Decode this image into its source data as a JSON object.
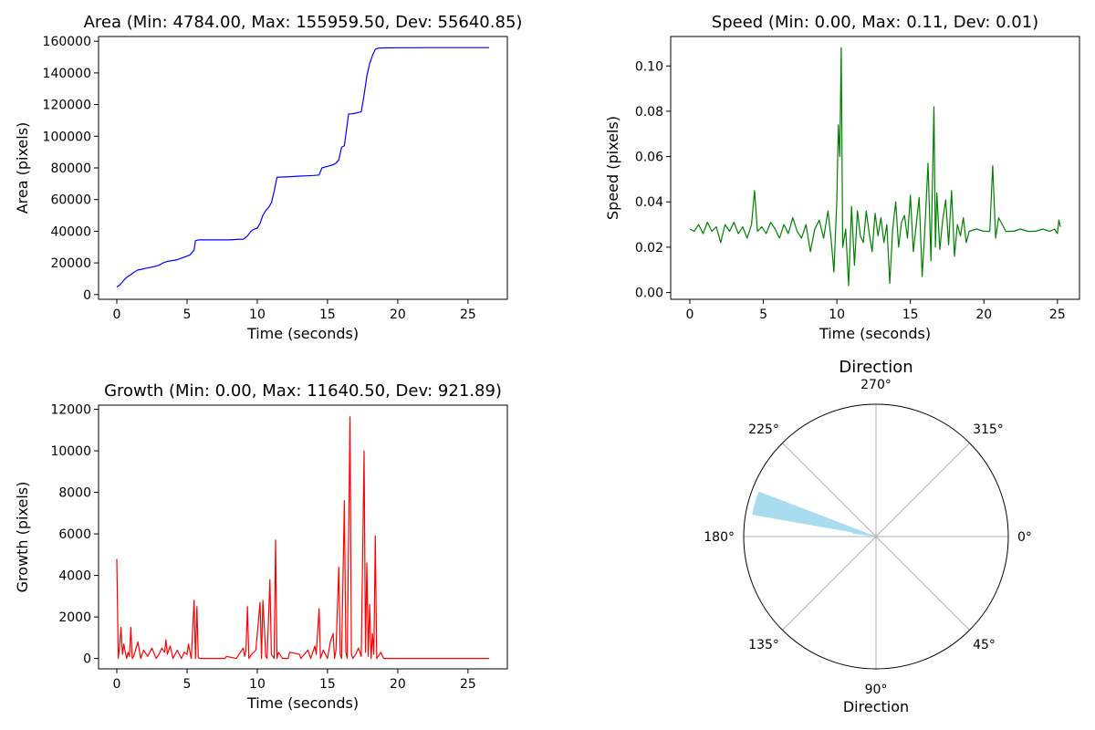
{
  "chart_data": [
    {
      "type": "line",
      "title": "Area (Min: 4784.00, Max: 155959.50, Dev: 55640.85)",
      "xlabel": "Time (seconds)",
      "ylabel": "Area (pixels)",
      "xlim": [
        -1.3,
        27.8
      ],
      "ylim": [
        -3000,
        163000
      ],
      "xticks": [
        0,
        5,
        10,
        15,
        20,
        25
      ],
      "yticks": [
        0,
        20000,
        40000,
        60000,
        80000,
        100000,
        120000,
        140000,
        160000
      ],
      "grid": false,
      "color": "#0000ff",
      "series": [
        {
          "x": [
            0.0,
            0.2,
            0.4,
            0.6,
            0.8,
            1.0,
            1.2,
            1.5,
            1.8,
            2.0,
            2.3,
            2.6,
            3.0,
            3.3,
            3.6,
            4.0,
            4.3,
            4.6,
            4.9,
            5.2,
            5.5,
            5.6,
            5.8,
            6.0,
            6.5,
            7.0,
            7.5,
            8.0,
            8.5,
            9.0,
            9.3,
            9.5,
            9.7,
            10.0,
            10.2,
            10.4,
            10.6,
            10.8,
            11.0,
            11.2,
            11.4,
            11.6,
            12.0,
            12.5,
            13.0,
            13.5,
            14.0,
            14.4,
            14.6,
            15.0,
            15.4,
            15.6,
            15.8,
            16.0,
            16.2,
            16.5,
            16.7,
            17.0,
            17.4,
            17.6,
            17.8,
            18.0,
            18.2,
            18.4,
            18.6,
            19.0,
            20.0,
            21.0,
            22.0,
            23.0,
            24.0,
            25.0,
            26.5
          ],
          "y": [
            4784,
            6000,
            8000,
            10000,
            11500,
            12500,
            14000,
            15500,
            16000,
            16500,
            17000,
            17500,
            18500,
            20000,
            21000,
            21500,
            22000,
            23000,
            24000,
            25000,
            28000,
            34000,
            34500,
            34500,
            34500,
            34500,
            34500,
            34500,
            34800,
            35000,
            37000,
            39500,
            41000,
            42000,
            45000,
            50000,
            53000,
            55000,
            58000,
            65000,
            74000,
            74200,
            74300,
            74500,
            74800,
            75000,
            75200,
            75500,
            80000,
            81000,
            82000,
            83000,
            85000,
            93000,
            94000,
            114000,
            114200,
            114500,
            115500,
            126000,
            138000,
            146000,
            151000,
            155000,
            155600,
            155800,
            155900,
            155900,
            155959.5,
            155959.5,
            155959.5,
            155959.5,
            155959.5
          ]
        }
      ]
    },
    {
      "type": "line",
      "title": "Speed (Min: 0.00, Max: 0.11, Dev: 0.01)",
      "xlabel": "Time (seconds)",
      "ylabel": "Speed (pixels)",
      "xlim": [
        -1.3,
        26.5
      ],
      "ylim": [
        -0.003,
        0.113
      ],
      "xticks": [
        0,
        5,
        10,
        15,
        20,
        25
      ],
      "yticks": [
        0.0,
        0.02,
        0.04,
        0.06,
        0.08,
        0.1
      ],
      "ytick_labels": [
        "0.00",
        "0.02",
        "0.04",
        "0.06",
        "0.08",
        "0.10"
      ],
      "grid": false,
      "color": "#008000",
      "series": [
        {
          "x": [
            0.0,
            0.3,
            0.6,
            0.9,
            1.2,
            1.5,
            1.8,
            2.1,
            2.4,
            2.7,
            3.0,
            3.3,
            3.6,
            3.9,
            4.2,
            4.4,
            4.6,
            4.9,
            5.2,
            5.5,
            5.8,
            6.1,
            6.4,
            6.7,
            7.0,
            7.3,
            7.6,
            7.9,
            8.2,
            8.5,
            8.8,
            9.1,
            9.4,
            9.6,
            9.8,
            10.0,
            10.1,
            10.2,
            10.3,
            10.4,
            10.6,
            10.8,
            11.0,
            11.2,
            11.4,
            11.6,
            11.8,
            12.0,
            12.2,
            12.4,
            12.6,
            12.8,
            13.0,
            13.2,
            13.4,
            13.6,
            13.8,
            14.0,
            14.2,
            14.4,
            14.6,
            14.8,
            15.0,
            15.2,
            15.4,
            15.6,
            15.8,
            16.0,
            16.2,
            16.4,
            16.6,
            16.7,
            16.8,
            17.0,
            17.2,
            17.4,
            17.6,
            17.8,
            18.0,
            18.2,
            18.4,
            18.6,
            18.8,
            19.0,
            19.5,
            20.0,
            20.4,
            20.6,
            20.8,
            21.0,
            21.5,
            22.0,
            22.5,
            23.0,
            23.5,
            24.0,
            24.5,
            24.8,
            25.0,
            25.1,
            25.2
          ],
          "y": [
            0.028,
            0.027,
            0.03,
            0.026,
            0.031,
            0.027,
            0.029,
            0.022,
            0.03,
            0.027,
            0.031,
            0.026,
            0.029,
            0.024,
            0.03,
            0.045,
            0.027,
            0.029,
            0.026,
            0.031,
            0.028,
            0.024,
            0.03,
            0.026,
            0.033,
            0.027,
            0.024,
            0.03,
            0.018,
            0.028,
            0.032,
            0.024,
            0.036,
            0.024,
            0.009,
            0.041,
            0.074,
            0.06,
            0.108,
            0.02,
            0.028,
            0.003,
            0.038,
            0.012,
            0.036,
            0.025,
            0.022,
            0.036,
            0.026,
            0.018,
            0.035,
            0.025,
            0.033,
            0.022,
            0.03,
            0.004,
            0.028,
            0.04,
            0.02,
            0.031,
            0.034,
            0.024,
            0.043,
            0.018,
            0.03,
            0.042,
            0.007,
            0.03,
            0.057,
            0.014,
            0.082,
            0.02,
            0.044,
            0.019,
            0.032,
            0.041,
            0.021,
            0.045,
            0.016,
            0.03,
            0.025,
            0.033,
            0.022,
            0.027,
            0.028,
            0.027,
            0.027,
            0.056,
            0.024,
            0.033,
            0.027,
            0.027,
            0.028,
            0.027,
            0.027,
            0.028,
            0.027,
            0.028,
            0.026,
            0.032,
            0.029
          ]
        }
      ]
    },
    {
      "type": "line",
      "title": "Growth (Min: 0.00, Max: 11640.50, Dev: 921.89)",
      "xlabel": "Time (seconds)",
      "ylabel": "Growth (pixels)",
      "xlim": [
        -1.3,
        27.8
      ],
      "ylim": [
        -500,
        12200
      ],
      "xticks": [
        0,
        5,
        10,
        15,
        20,
        25
      ],
      "yticks": [
        0,
        2000,
        4000,
        6000,
        8000,
        10000,
        12000
      ],
      "grid": false,
      "color": "#ff0000",
      "series": [
        {
          "x": [
            0.0,
            0.1,
            0.2,
            0.3,
            0.4,
            0.5,
            0.6,
            0.7,
            0.8,
            0.9,
            1.0,
            1.1,
            1.2,
            1.5,
            1.7,
            1.9,
            2.2,
            2.5,
            2.8,
            3.0,
            3.2,
            3.4,
            3.5,
            3.6,
            3.8,
            4.0,
            4.3,
            4.6,
            4.8,
            5.0,
            5.1,
            5.3,
            5.5,
            5.6,
            5.7,
            5.8,
            5.9,
            6.2,
            7.0,
            7.7,
            7.8,
            8.5,
            9.0,
            9.1,
            9.2,
            9.3,
            9.4,
            9.6,
            9.9,
            10.2,
            10.3,
            10.4,
            10.5,
            10.6,
            10.7,
            10.9,
            11.0,
            11.2,
            11.3,
            11.4,
            11.5,
            11.8,
            12.2,
            12.3,
            13.0,
            13.1,
            13.6,
            13.8,
            14.1,
            14.2,
            14.4,
            14.5,
            14.7,
            15.0,
            15.2,
            15.4,
            15.5,
            15.6,
            15.8,
            15.9,
            16.0,
            16.2,
            16.3,
            16.4,
            16.6,
            16.7,
            16.8,
            17.0,
            17.2,
            17.4,
            17.6,
            17.7,
            17.8,
            17.9,
            18.0,
            18.1,
            18.2,
            18.3,
            18.4,
            18.5,
            18.6,
            18.8,
            19.0,
            19.5,
            20.0,
            22.0,
            24.0,
            26.5
          ],
          "y": [
            4784,
            0,
            600,
            1500,
            200,
            700,
            300,
            0,
            300,
            100,
            1500,
            0,
            100,
            800,
            0,
            400,
            100,
            500,
            0,
            200,
            500,
            300,
            900,
            200,
            600,
            0,
            400,
            0,
            300,
            200,
            700,
            0,
            2800,
            0,
            2500,
            50,
            0,
            0,
            0,
            0,
            100,
            0,
            500,
            100,
            400,
            2500,
            0,
            200,
            400,
            2700,
            0,
            2800,
            1500,
            100,
            0,
            3800,
            200,
            0,
            5700,
            0,
            300,
            0,
            0,
            300,
            200,
            0,
            400,
            0,
            600,
            200,
            2400,
            0,
            400,
            0,
            800,
            1200,
            0,
            400,
            4400,
            200,
            0,
            7600,
            300,
            0,
            11640,
            200,
            0,
            200,
            500,
            100,
            10000,
            300,
            4600,
            100,
            2600,
            0,
            1200,
            200,
            5900,
            0,
            100,
            300,
            0,
            0,
            0,
            0,
            0,
            0
          ]
        }
      ]
    },
    {
      "type": "polar-bar",
      "title": "Direction",
      "xlabel": "Direction",
      "theta_direction": "clockwise",
      "theta_zero": "east",
      "angle_labels": [
        "0°",
        "45°",
        "90°",
        "135°",
        "180°",
        "225°",
        "270°",
        "315°"
      ],
      "angles_deg": [
        0,
        45,
        90,
        135,
        180,
        225,
        270,
        315
      ],
      "grid": true,
      "color": "#a8dcee",
      "bars": [
        {
          "theta_start_deg": 190.0,
          "theta_end_deg": 201.0,
          "radius_fraction": 0.95
        },
        {
          "theta_start_deg": 190.0,
          "theta_end_deg": 201.0,
          "radius_fraction": 0.78
        },
        {
          "theta_start_deg": 187.0,
          "theta_end_deg": 196.0,
          "radius_fraction": 0.18
        }
      ]
    }
  ]
}
